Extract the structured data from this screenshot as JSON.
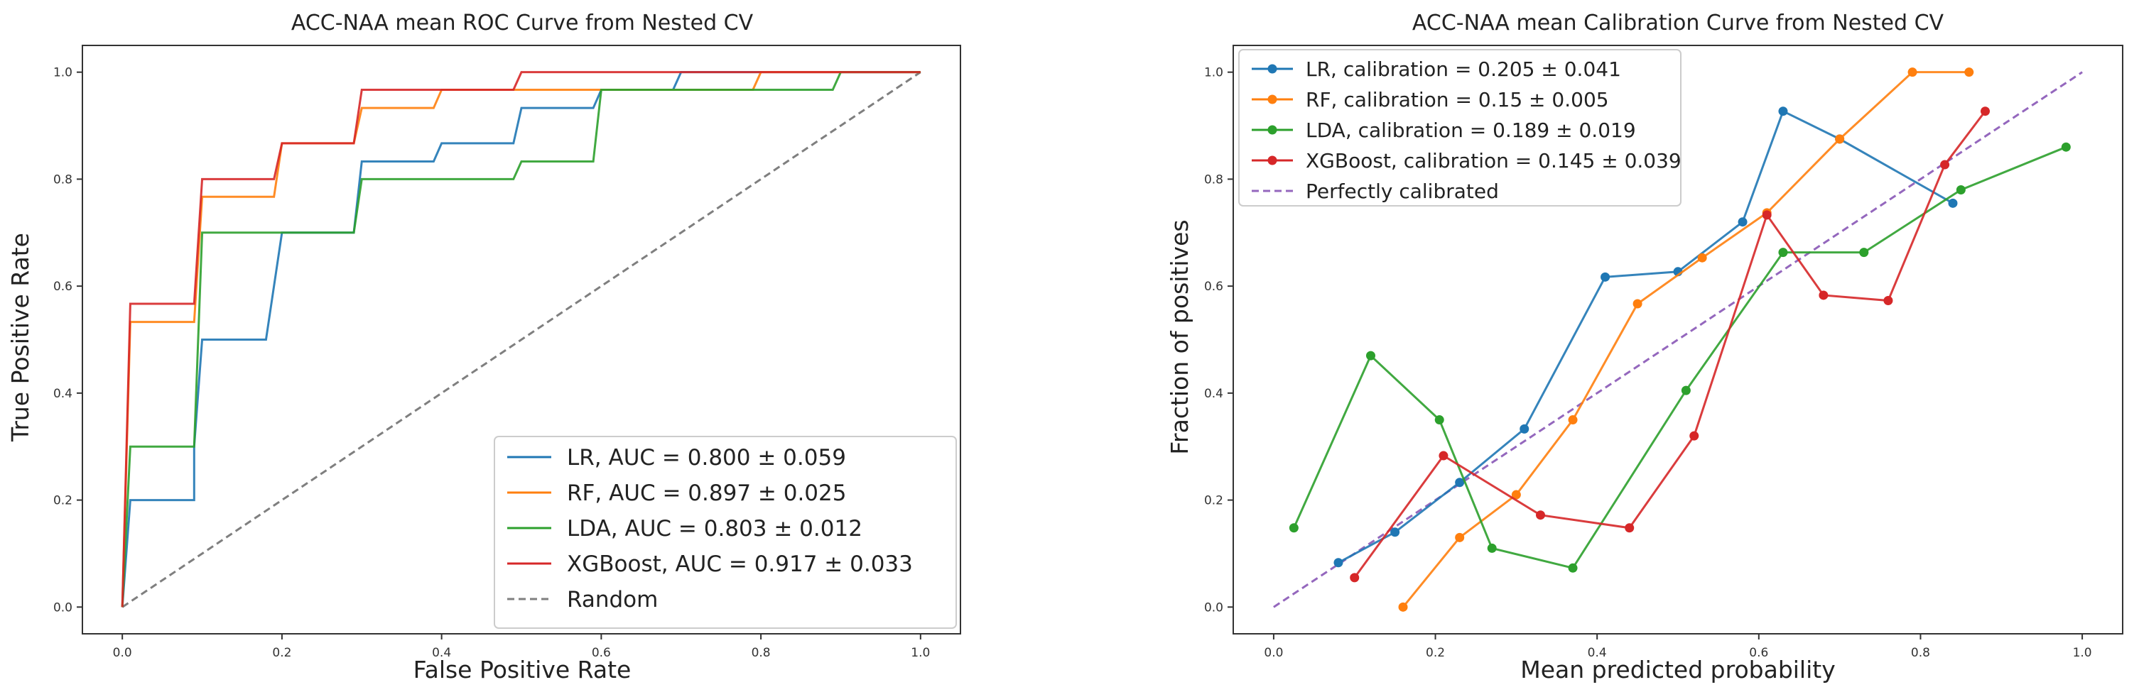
{
  "chart_data": [
    {
      "type": "line",
      "title": "ACC-NAA mean ROC Curve from Nested CV",
      "xlabel": "False Positive Rate",
      "ylabel": "True Positive Rate",
      "xlim": [
        -0.05,
        1.05
      ],
      "ylim": [
        -0.05,
        1.05
      ],
      "xticks": [
        "0.0",
        "0.2",
        "0.4",
        "0.6",
        "0.8",
        "1.0"
      ],
      "yticks": [
        "0.0",
        "0.2",
        "0.4",
        "0.6",
        "0.8",
        "1.0"
      ],
      "legend_position": "lower-right",
      "series": [
        {
          "name": "LR",
          "label": "LR, AUC = 0.800 ± 0.059",
          "color": "#1f77b4",
          "x": [
            0,
            0.01,
            0.09,
            0.09,
            0.1,
            0.18,
            0.19,
            0.2,
            0.29,
            0.3,
            0.39,
            0.4,
            0.49,
            0.5,
            0.59,
            0.6,
            0.69,
            0.7,
            1.0
          ],
          "y": [
            0,
            0.2,
            0.2,
            0.3,
            0.5,
            0.5,
            0.6,
            0.7,
            0.7,
            0.833,
            0.833,
            0.867,
            0.867,
            0.933,
            0.933,
            0.967,
            0.967,
            1.0,
            1.0
          ]
        },
        {
          "name": "RF",
          "label": "RF, AUC = 0.897 ± 0.025",
          "color": "#ff7f0e",
          "x": [
            0,
            0.01,
            0.09,
            0.1,
            0.19,
            0.2,
            0.29,
            0.3,
            0.39,
            0.4,
            0.79,
            0.8,
            1.0
          ],
          "y": [
            0,
            0.533,
            0.533,
            0.767,
            0.767,
            0.867,
            0.867,
            0.933,
            0.933,
            0.967,
            0.967,
            1.0,
            1.0
          ]
        },
        {
          "name": "LDA",
          "label": "LDA, AUC = 0.803 ± 0.012",
          "color": "#2ca02c",
          "x": [
            0,
            0.01,
            0.09,
            0.1,
            0.29,
            0.3,
            0.49,
            0.5,
            0.59,
            0.6,
            0.89,
            0.9,
            1.0
          ],
          "y": [
            0,
            0.3,
            0.3,
            0.7,
            0.7,
            0.8,
            0.8,
            0.833,
            0.833,
            0.967,
            0.967,
            1.0,
            1.0
          ]
        },
        {
          "name": "XGBoost",
          "label": "XGBoost, AUC = 0.917 ± 0.033",
          "color": "#d62728",
          "x": [
            0,
            0.01,
            0.09,
            0.1,
            0.19,
            0.2,
            0.29,
            0.3,
            0.49,
            0.5,
            1.0
          ],
          "y": [
            0,
            0.567,
            0.567,
            0.8,
            0.8,
            0.867,
            0.867,
            0.967,
            0.967,
            1.0,
            1.0
          ]
        },
        {
          "name": "Random",
          "label": "Random",
          "color": "#7f7f7f",
          "dashed": true,
          "x": [
            0,
            1
          ],
          "y": [
            0,
            1
          ]
        }
      ]
    },
    {
      "type": "line",
      "title": "ACC-NAA mean Calibration Curve from Nested CV",
      "xlabel": "Mean predicted probability",
      "ylabel": "Fraction of positives",
      "xlim": [
        -0.05,
        1.05
      ],
      "ylim": [
        -0.05,
        1.05
      ],
      "xticks": [
        "0.0",
        "0.2",
        "0.4",
        "0.6",
        "0.8",
        "1.0"
      ],
      "yticks": [
        "0.0",
        "0.2",
        "0.4",
        "0.6",
        "0.8",
        "1.0"
      ],
      "legend_position": "upper-left",
      "series": [
        {
          "name": "LR",
          "label": "LR, calibration = 0.205 ± 0.041",
          "color": "#1f77b4",
          "markers": true,
          "x": [
            0.08,
            0.15,
            0.23,
            0.31,
            0.41,
            0.5,
            0.58,
            0.63,
            0.7,
            0.84
          ],
          "y": [
            0.083,
            0.14,
            0.233,
            0.333,
            0.617,
            0.627,
            0.72,
            0.927,
            0.875,
            0.755
          ]
        },
        {
          "name": "RF",
          "label": "RF, calibration = 0.15 ± 0.005",
          "color": "#ff7f0e",
          "markers": true,
          "x": [
            0.16,
            0.23,
            0.3,
            0.37,
            0.45,
            0.53,
            0.61,
            0.7,
            0.79,
            0.86
          ],
          "y": [
            0.0,
            0.13,
            0.21,
            0.35,
            0.567,
            0.653,
            0.737,
            0.875,
            1.0,
            1.0
          ]
        },
        {
          "name": "LDA",
          "label": "LDA, calibration = 0.189 ± 0.019",
          "color": "#2ca02c",
          "markers": true,
          "x": [
            0.025,
            0.12,
            0.205,
            0.27,
            0.37,
            0.51,
            0.63,
            0.73,
            0.85,
            0.98
          ],
          "y": [
            0.148,
            0.47,
            0.35,
            0.11,
            0.073,
            0.405,
            0.663,
            0.663,
            0.78,
            0.86
          ]
        },
        {
          "name": "XGBoost",
          "label": "XGBoost, calibration = 0.145 ± 0.039",
          "color": "#d62728",
          "markers": true,
          "x": [
            0.1,
            0.21,
            0.33,
            0.44,
            0.52,
            0.61,
            0.68,
            0.76,
            0.83,
            0.88
          ],
          "y": [
            0.055,
            0.283,
            0.172,
            0.148,
            0.32,
            0.733,
            0.583,
            0.573,
            0.827,
            0.927
          ]
        },
        {
          "name": "Perfectly calibrated",
          "label": "Perfectly calibrated",
          "color": "#9467bd",
          "dashed": true,
          "x": [
            0,
            1
          ],
          "y": [
            0,
            1
          ]
        }
      ]
    }
  ]
}
